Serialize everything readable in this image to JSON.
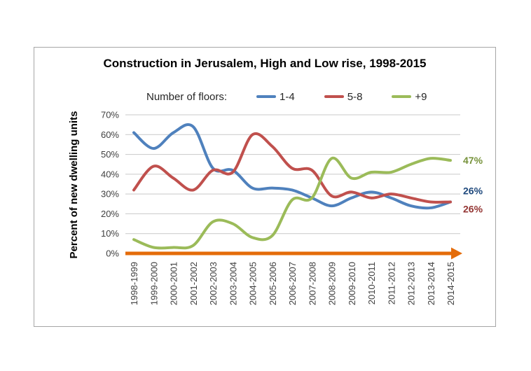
{
  "chart_data": {
    "type": "line",
    "title": "Construction in Jerusalem, High and Low rise, 1998-2015",
    "legend_title": "Number of floors:",
    "ylabel": "Percent of new dwelling units",
    "xlabel": "",
    "ylim": [
      0,
      70
    ],
    "grid": true,
    "legend_position": "top",
    "y_ticks": [
      "0%",
      "10%",
      "20%",
      "30%",
      "40%",
      "50%",
      "60%",
      "70%"
    ],
    "categories": [
      "1998-1999",
      "1999-2000",
      "2000-2001",
      "2001-2002",
      "2002-2003",
      "2003-2004",
      "2004-2005",
      "2005-2006",
      "2006-2007",
      "2007-2008",
      "2008-2009",
      "2009-2010",
      "2010-2011",
      "2011-2012",
      "2012-2013",
      "2013-2014",
      "2014-2015"
    ],
    "series": [
      {
        "name": "1-4",
        "color": "#4F81BD",
        "label_color": "#1F497D",
        "end_label": "26%",
        "values": [
          61,
          53,
          61,
          64,
          43,
          42,
          33,
          33,
          32,
          28,
          24,
          28,
          31,
          28,
          24,
          23,
          26
        ]
      },
      {
        "name": "5-8",
        "color": "#C0504D",
        "label_color": "#943634",
        "end_label": "26%",
        "values": [
          32,
          44,
          38,
          32,
          42,
          41,
          60,
          54,
          43,
          42,
          29,
          31,
          28,
          30,
          28,
          26,
          26
        ]
      },
      {
        "name": "+9",
        "color": "#9BBB59",
        "label_color": "#77933C",
        "end_label": "47%",
        "values": [
          7,
          3,
          3,
          4,
          16,
          15,
          8,
          9,
          27,
          28,
          48,
          38,
          41,
          41,
          45,
          48,
          47
        ]
      }
    ],
    "x_axis": {
      "color": "#E46C0A",
      "arrow": true
    },
    "gridline_color": "#C9C9C9",
    "tick_label_color": "#404040"
  }
}
